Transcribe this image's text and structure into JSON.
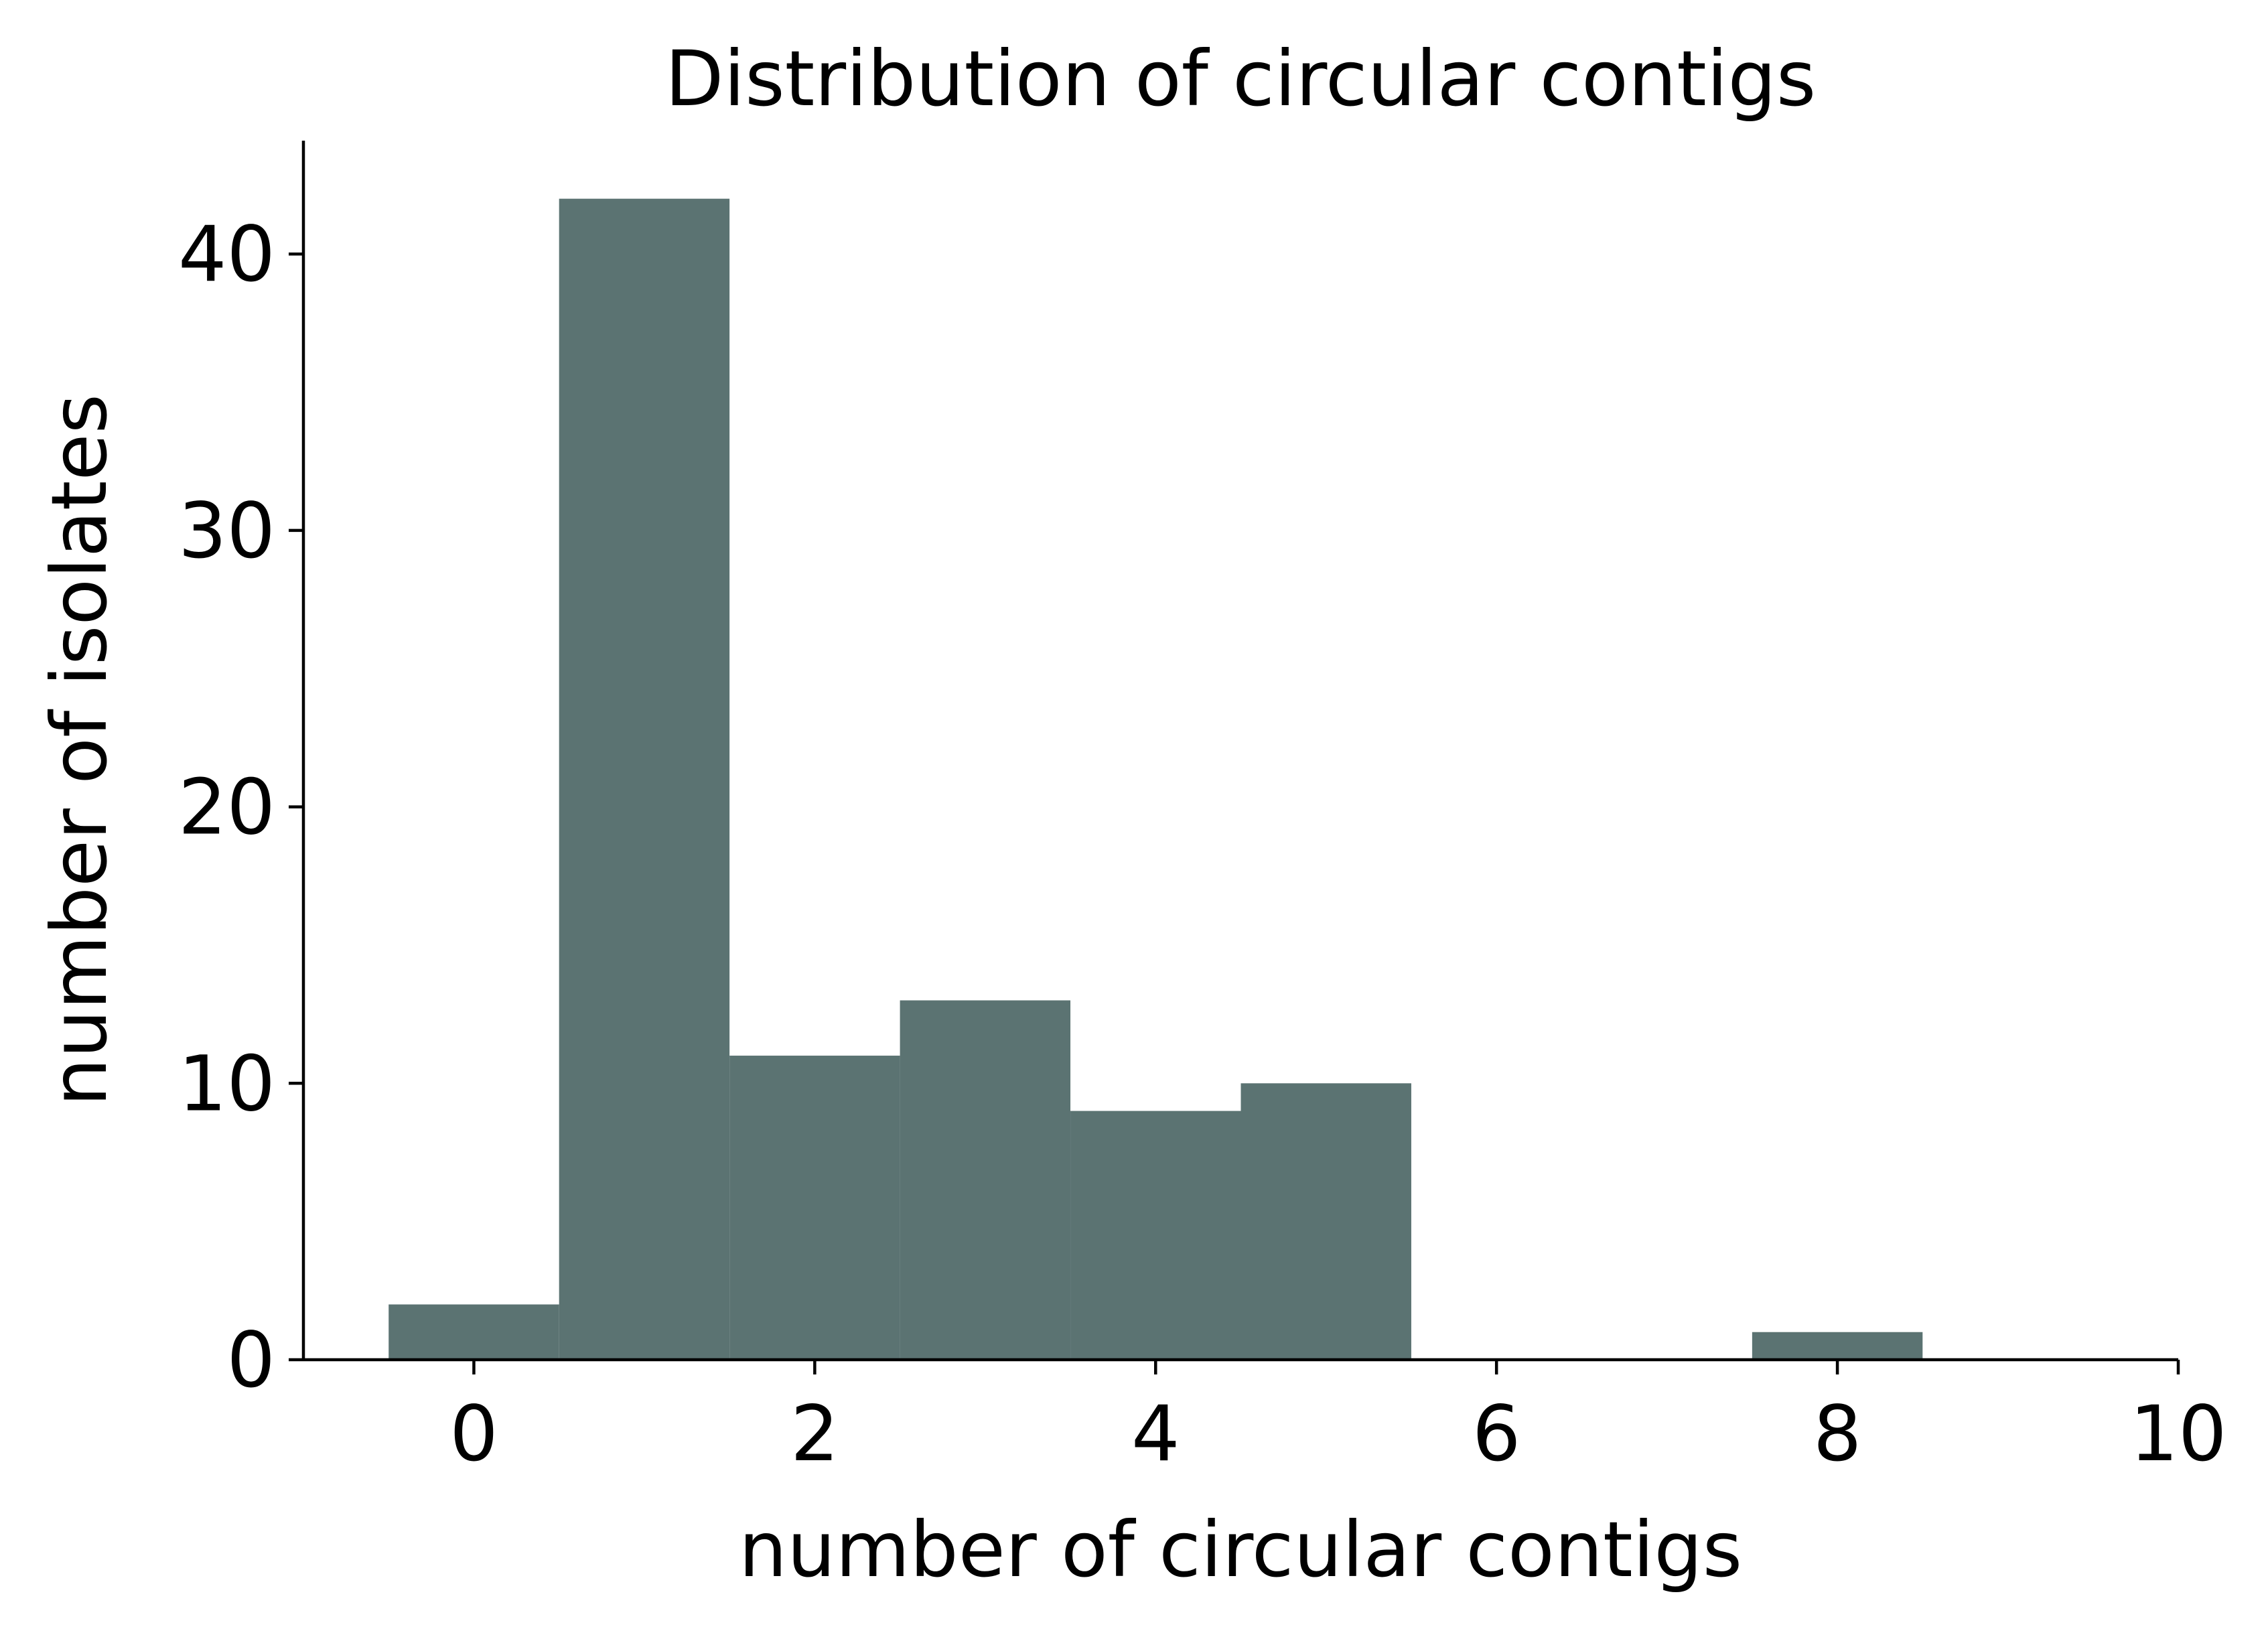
{
  "chart_data": {
    "type": "bar",
    "title": "Distribution of circular contigs",
    "xlabel": "number of circular contigs",
    "ylabel": "number of isolates",
    "categories": [
      0,
      1,
      2,
      3,
      4,
      5,
      6,
      7,
      8
    ],
    "values": [
      2,
      42,
      11,
      13,
      9,
      10,
      0,
      0,
      1
    ],
    "bin_width": 1,
    "xlim": [
      -1,
      10
    ],
    "ylim": [
      0,
      44.1
    ],
    "xticks": [
      0,
      2,
      4,
      6,
      8,
      10
    ],
    "yticks": [
      0,
      10,
      20,
      30,
      40
    ],
    "bar_color": "#5b7372",
    "grid": false,
    "legend": "none"
  }
}
